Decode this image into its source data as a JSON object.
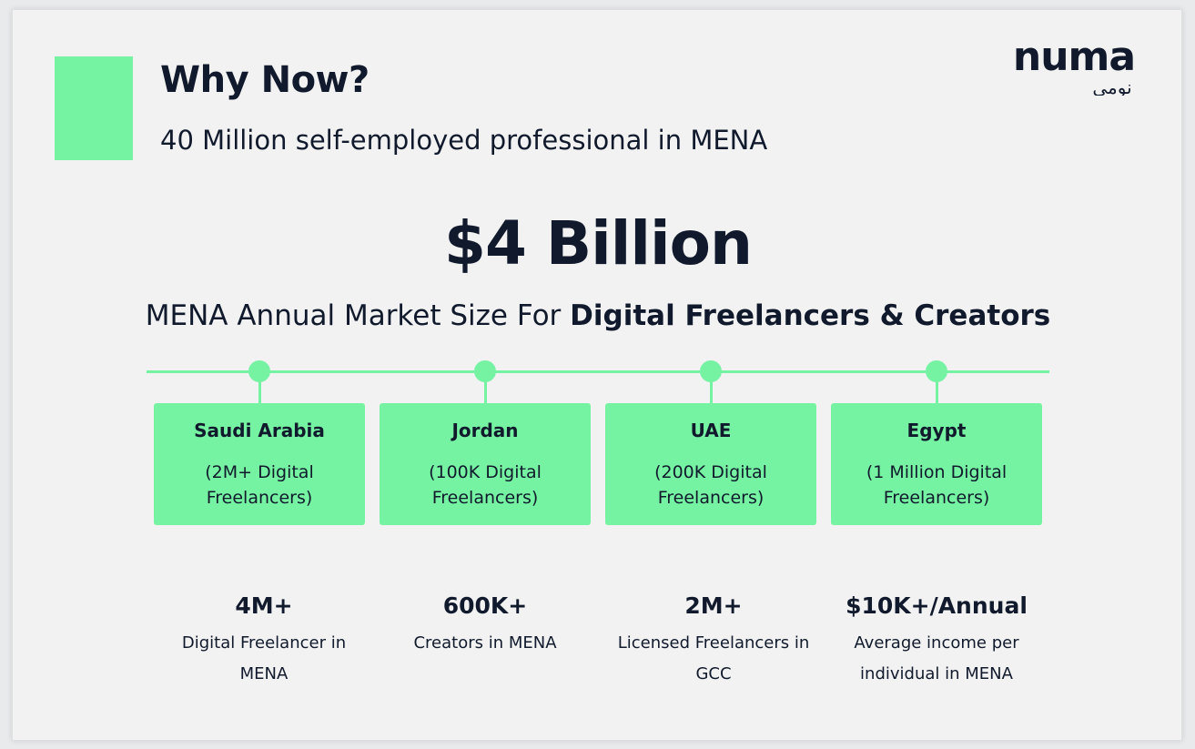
{
  "header": {
    "title": "Why Now?",
    "subtitle": "40 Million self-employed professional in MENA"
  },
  "logo": {
    "latin": "numa",
    "arabic": "نومى"
  },
  "hero": {
    "value": "$4 Billion",
    "caption_plain": "MENA Annual Market Size For ",
    "caption_bold": "Digital Freelancers & Creators"
  },
  "countries": [
    {
      "name": "Saudi Arabia",
      "detail": "(2M+ Digital Freelancers)"
    },
    {
      "name": "Jordan",
      "detail": "(100K Digital Freelancers)"
    },
    {
      "name": "UAE",
      "detail": "(200K Digital Freelancers)"
    },
    {
      "name": "Egypt",
      "detail": "(1 Million Digital Freelancers)"
    }
  ],
  "stats": [
    {
      "value": "4M+",
      "label": "Digital Freelancer in MENA"
    },
    {
      "value": "600K+",
      "label": "Creators in MENA"
    },
    {
      "value": "2M+",
      "label": "Licensed Freelancers in GCC"
    },
    {
      "value": "$10K+/Annual",
      "label": "Average income per individual in MENA"
    }
  ],
  "colors": {
    "accent": "#76f3a2",
    "text": "#111a2c",
    "background": "#f2f2f2"
  }
}
